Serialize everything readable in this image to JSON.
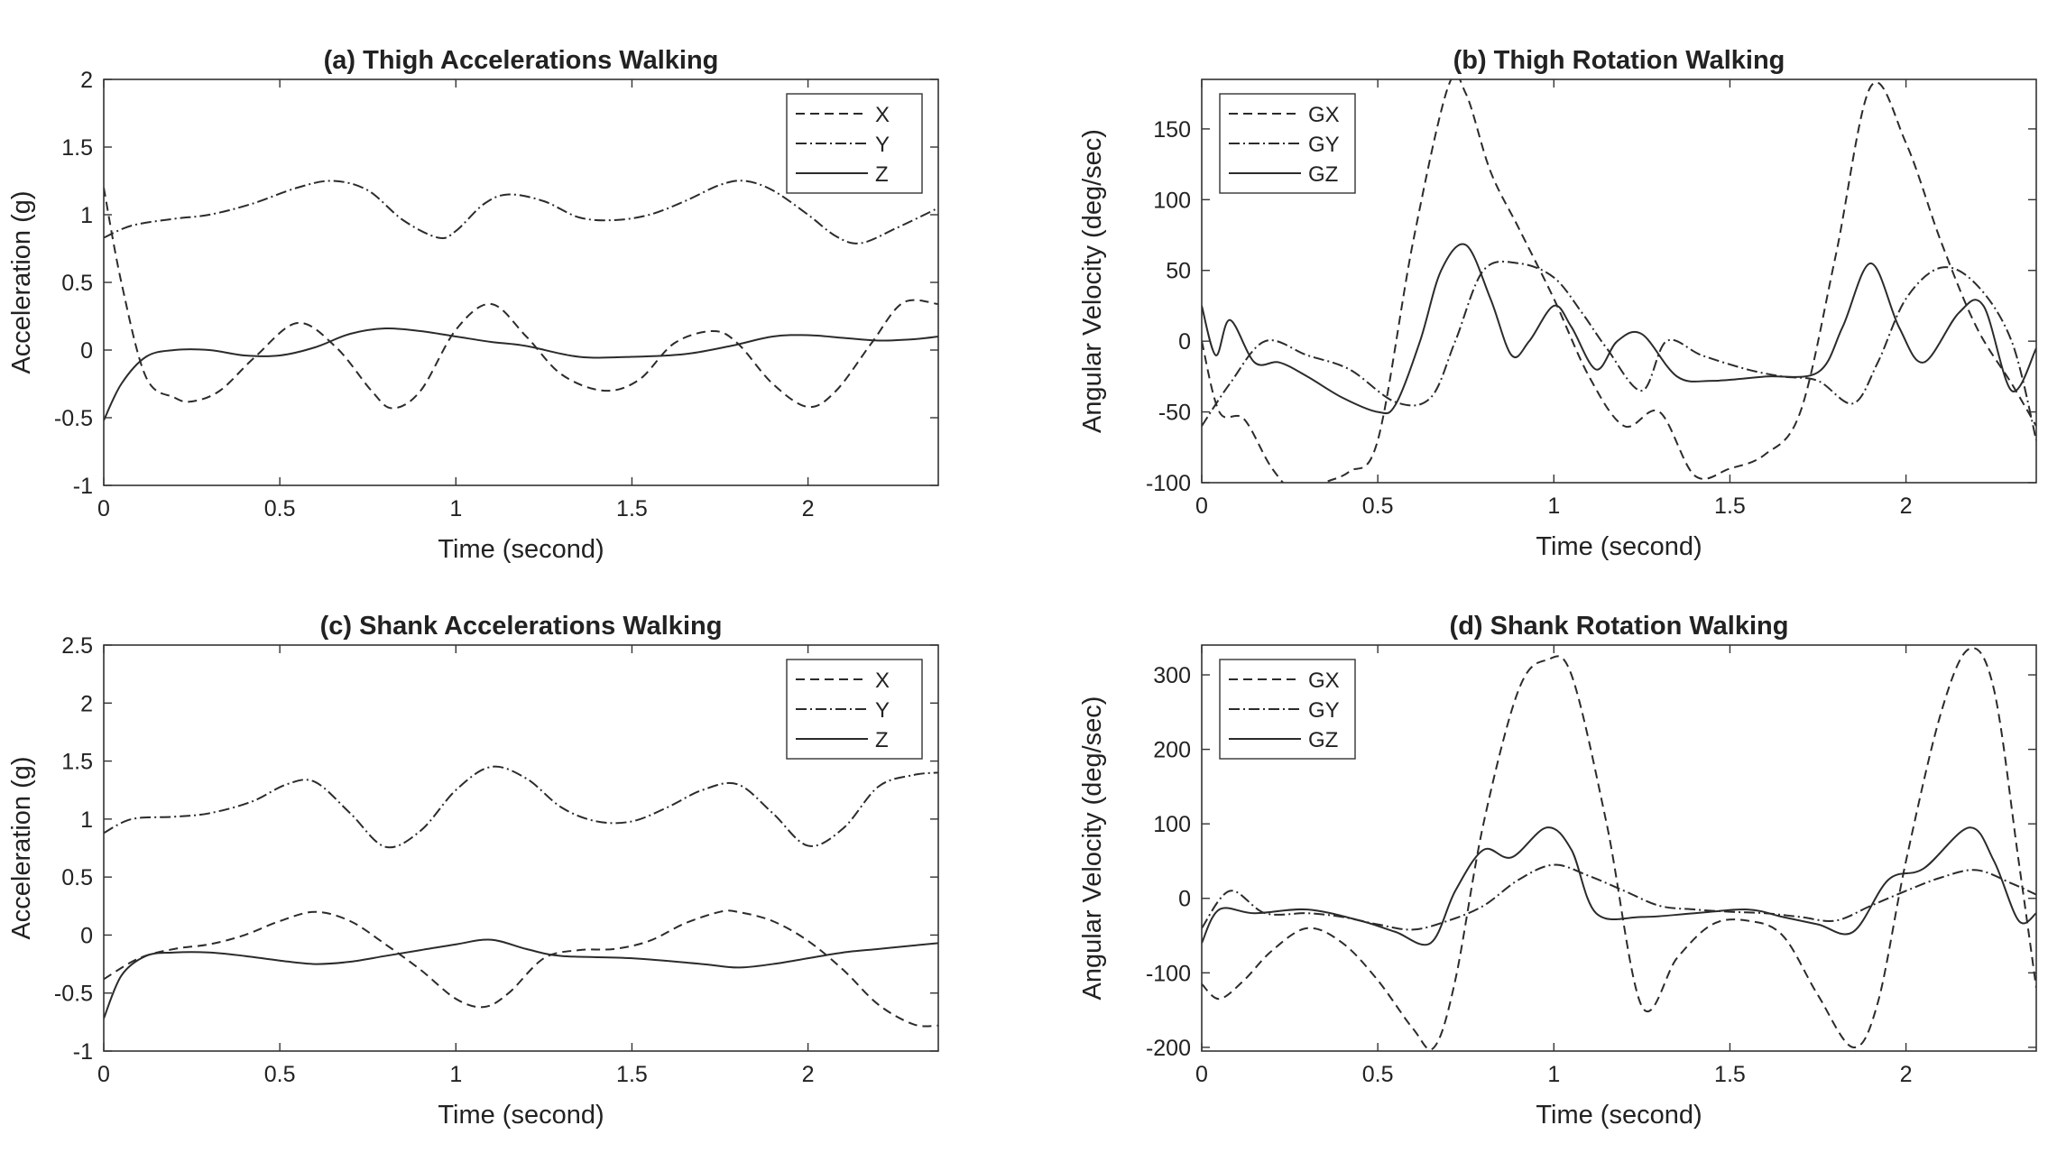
{
  "chart_data": [
    {
      "type": "line",
      "title": "(a) Thigh Accelerations Walking",
      "xlabel": "Time (second)",
      "ylabel": "Acceleration (g)",
      "xlim": [
        0,
        2.37
      ],
      "ylim": [
        -1,
        2
      ],
      "xticks": [
        0,
        0.5,
        1,
        1.5,
        2
      ],
      "xtick_labels": [
        "0",
        "0.5",
        "1",
        "1.5",
        "2"
      ],
      "yticks": [
        -1,
        -0.5,
        0,
        0.5,
        1,
        1.5,
        2
      ],
      "ytick_labels": [
        "-1",
        "-0.5",
        "0",
        "0.5",
        "1",
        "1.5",
        "2"
      ],
      "legend_position": "top-right",
      "series": [
        {
          "name": "X",
          "style": "dashed",
          "x": [
            0,
            0.05,
            0.12,
            0.2,
            0.25,
            0.33,
            0.43,
            0.55,
            0.66,
            0.76,
            0.82,
            0.9,
            1.0,
            1.1,
            1.2,
            1.3,
            1.42,
            1.52,
            1.62,
            1.73,
            1.8,
            1.9,
            2.0,
            2.08,
            2.18,
            2.27,
            2.37
          ],
          "y": [
            1.2,
            0.5,
            -0.2,
            -0.35,
            -0.38,
            -0.3,
            -0.05,
            0.2,
            0.02,
            -0.3,
            -0.43,
            -0.3,
            0.15,
            0.34,
            0.1,
            -0.18,
            -0.3,
            -0.22,
            0.05,
            0.14,
            0.05,
            -0.25,
            -0.42,
            -0.3,
            0.05,
            0.35,
            0.34
          ]
        },
        {
          "name": "Y",
          "style": "dashdot",
          "x": [
            0,
            0.08,
            0.2,
            0.3,
            0.42,
            0.55,
            0.65,
            0.75,
            0.85,
            0.95,
            1.0,
            1.08,
            1.15,
            1.25,
            1.35,
            1.45,
            1.55,
            1.65,
            1.75,
            1.82,
            1.9,
            2.0,
            2.08,
            2.15,
            2.25,
            2.37
          ],
          "y": [
            0.83,
            0.92,
            0.97,
            1.0,
            1.08,
            1.2,
            1.25,
            1.18,
            0.96,
            0.83,
            0.88,
            1.08,
            1.15,
            1.1,
            0.98,
            0.96,
            1.0,
            1.1,
            1.22,
            1.25,
            1.18,
            1.0,
            0.84,
            0.79,
            0.9,
            1.05
          ]
        },
        {
          "name": "Z",
          "style": "solid",
          "x": [
            0,
            0.05,
            0.12,
            0.2,
            0.3,
            0.4,
            0.5,
            0.6,
            0.7,
            0.8,
            0.9,
            1.0,
            1.1,
            1.2,
            1.35,
            1.5,
            1.65,
            1.78,
            1.9,
            2.0,
            2.1,
            2.2,
            2.3,
            2.37
          ],
          "y": [
            -0.52,
            -0.25,
            -0.05,
            0.0,
            0.0,
            -0.04,
            -0.04,
            0.02,
            0.12,
            0.16,
            0.14,
            0.1,
            0.06,
            0.03,
            -0.05,
            -0.05,
            -0.03,
            0.03,
            0.1,
            0.11,
            0.09,
            0.07,
            0.08,
            0.1
          ]
        }
      ]
    },
    {
      "type": "line",
      "title": "(b) Thigh Rotation Walking",
      "xlabel": "Time (second)",
      "ylabel": "Angular Velocity (deg/sec)",
      "xlim": [
        0,
        2.37
      ],
      "ylim": [
        -100,
        185
      ],
      "xticks": [
        0,
        0.5,
        1,
        1.5,
        2
      ],
      "xtick_labels": [
        "0",
        "0.5",
        "1",
        "1.5",
        "2"
      ],
      "yticks": [
        -100,
        -50,
        0,
        50,
        100,
        150
      ],
      "ytick_labels": [
        "-100",
        "-50",
        "0",
        "50",
        "100",
        "150"
      ],
      "legend_position": "top-left",
      "series": [
        {
          "name": "GX",
          "style": "dashed",
          "x": [
            0,
            0.05,
            0.12,
            0.2,
            0.28,
            0.35,
            0.42,
            0.5,
            0.6,
            0.7,
            0.75,
            0.82,
            0.9,
            1.0,
            1.1,
            1.2,
            1.3,
            1.4,
            1.5,
            1.6,
            1.7,
            1.8,
            1.9,
            2.0,
            2.1,
            2.2,
            2.3,
            2.37
          ],
          "y": [
            0,
            -50,
            -55,
            -90,
            -110,
            -100,
            -92,
            -70,
            70,
            180,
            175,
            120,
            80,
            30,
            -25,
            -60,
            -50,
            -95,
            -90,
            -80,
            -50,
            60,
            180,
            140,
            70,
            10,
            -30,
            -60
          ]
        },
        {
          "name": "GY",
          "style": "dashdot",
          "x": [
            0,
            0.08,
            0.18,
            0.3,
            0.42,
            0.55,
            0.65,
            0.72,
            0.8,
            0.9,
            1.0,
            1.08,
            1.15,
            1.25,
            1.32,
            1.42,
            1.55,
            1.65,
            1.75,
            1.85,
            1.92,
            2.0,
            2.1,
            2.2,
            2.3,
            2.37
          ],
          "y": [
            -60,
            -30,
            0,
            -10,
            -20,
            -43,
            -40,
            0,
            50,
            55,
            45,
            20,
            -5,
            -35,
            0,
            -10,
            -20,
            -25,
            -28,
            -44,
            -15,
            30,
            52,
            40,
            0,
            -70
          ]
        },
        {
          "name": "GZ",
          "style": "solid",
          "x": [
            0,
            0.04,
            0.08,
            0.15,
            0.22,
            0.3,
            0.4,
            0.5,
            0.55,
            0.62,
            0.68,
            0.75,
            0.82,
            0.88,
            0.93,
            1.0,
            1.05,
            1.12,
            1.18,
            1.25,
            1.35,
            1.45,
            1.6,
            1.75,
            1.82,
            1.9,
            1.98,
            2.05,
            2.15,
            2.22,
            2.3,
            2.37
          ],
          "y": [
            25,
            -10,
            15,
            -15,
            -15,
            -25,
            -40,
            -50,
            -45,
            0,
            50,
            68,
            30,
            -10,
            0,
            25,
            10,
            -20,
            0,
            5,
            -25,
            -28,
            -25,
            -22,
            10,
            55,
            10,
            -15,
            20,
            25,
            -35,
            -5
          ]
        }
      ]
    },
    {
      "type": "line",
      "title": "(c) Shank Accelerations Walking",
      "xlabel": "Time (second)",
      "ylabel": "Acceleration (g)",
      "xlim": [
        0,
        2.37
      ],
      "ylim": [
        -1,
        2.5
      ],
      "xticks": [
        0,
        0.5,
        1,
        1.5,
        2
      ],
      "xtick_labels": [
        "0",
        "0.5",
        "1",
        "1.5",
        "2"
      ],
      "yticks": [
        -1,
        -0.5,
        0,
        0.5,
        1,
        1.5,
        2,
        2.5
      ],
      "ytick_labels": [
        "-1",
        "-0.5",
        "0",
        "0.5",
        "1",
        "1.5",
        "2",
        "2.5"
      ],
      "legend_position": "top-right",
      "series": [
        {
          "name": "X",
          "style": "dashed",
          "x": [
            0,
            0.1,
            0.2,
            0.3,
            0.4,
            0.5,
            0.6,
            0.7,
            0.8,
            0.9,
            1.0,
            1.08,
            1.15,
            1.25,
            1.35,
            1.45,
            1.55,
            1.65,
            1.75,
            1.8,
            1.9,
            2.0,
            2.1,
            2.2,
            2.3,
            2.37
          ],
          "y": [
            -0.38,
            -0.2,
            -0.12,
            -0.08,
            0.0,
            0.12,
            0.2,
            0.12,
            -0.08,
            -0.3,
            -0.55,
            -0.62,
            -0.5,
            -0.2,
            -0.13,
            -0.12,
            -0.05,
            0.1,
            0.2,
            0.2,
            0.12,
            -0.05,
            -0.3,
            -0.6,
            -0.77,
            -0.78
          ]
        },
        {
          "name": "Y",
          "style": "dashdot",
          "x": [
            0,
            0.08,
            0.2,
            0.3,
            0.42,
            0.52,
            0.6,
            0.7,
            0.8,
            0.9,
            1.0,
            1.1,
            1.2,
            1.3,
            1.4,
            1.5,
            1.6,
            1.7,
            1.8,
            1.9,
            2.0,
            2.1,
            2.2,
            2.3,
            2.37
          ],
          "y": [
            0.88,
            1.0,
            1.02,
            1.05,
            1.15,
            1.3,
            1.32,
            1.05,
            0.76,
            0.9,
            1.25,
            1.45,
            1.35,
            1.1,
            0.98,
            0.98,
            1.1,
            1.25,
            1.3,
            1.05,
            0.77,
            0.92,
            1.28,
            1.38,
            1.4
          ]
        },
        {
          "name": "Z",
          "style": "solid",
          "x": [
            0,
            0.05,
            0.12,
            0.2,
            0.3,
            0.4,
            0.5,
            0.6,
            0.7,
            0.8,
            0.9,
            1.0,
            1.1,
            1.2,
            1.3,
            1.5,
            1.7,
            1.8,
            1.9,
            2.0,
            2.1,
            2.2,
            2.3,
            2.37
          ],
          "y": [
            -0.72,
            -0.35,
            -0.18,
            -0.15,
            -0.15,
            -0.18,
            -0.22,
            -0.25,
            -0.23,
            -0.18,
            -0.13,
            -0.08,
            -0.04,
            -0.12,
            -0.18,
            -0.2,
            -0.25,
            -0.28,
            -0.25,
            -0.2,
            -0.15,
            -0.12,
            -0.09,
            -0.07
          ]
        }
      ]
    },
    {
      "type": "line",
      "title": "(d) Shank Rotation Walking",
      "xlabel": "Time (second)",
      "ylabel": "Angular Velocity (deg/sec)",
      "xlim": [
        0,
        2.37
      ],
      "ylim": [
        -205,
        340
      ],
      "xticks": [
        0,
        0.5,
        1,
        1.5,
        2
      ],
      "xtick_labels": [
        "0",
        "0.5",
        "1",
        "1.5",
        "2"
      ],
      "yticks": [
        -200,
        -100,
        0,
        100,
        200,
        300
      ],
      "ytick_labels": [
        "-200",
        "-100",
        "0",
        "100",
        "200",
        "300"
      ],
      "legend_position": "top-left",
      "series": [
        {
          "name": "GX",
          "style": "dashed",
          "x": [
            0,
            0.05,
            0.12,
            0.2,
            0.3,
            0.4,
            0.5,
            0.6,
            0.66,
            0.72,
            0.8,
            0.9,
            0.98,
            1.05,
            1.15,
            1.25,
            1.35,
            1.45,
            1.55,
            1.65,
            1.75,
            1.85,
            1.92,
            2.0,
            2.1,
            2.18,
            2.25,
            2.32,
            2.37
          ],
          "y": [
            -115,
            -135,
            -110,
            -70,
            -40,
            -60,
            -110,
            -175,
            -200,
            -110,
            100,
            280,
            320,
            300,
            100,
            -145,
            -80,
            -35,
            -30,
            -50,
            -130,
            -200,
            -140,
            50,
            250,
            335,
            280,
            50,
            -120
          ]
        },
        {
          "name": "GY",
          "style": "dashdot",
          "x": [
            0,
            0.08,
            0.18,
            0.3,
            0.4,
            0.5,
            0.6,
            0.7,
            0.8,
            0.9,
            1.0,
            1.1,
            1.2,
            1.3,
            1.4,
            1.5,
            1.6,
            1.7,
            1.8,
            1.9,
            2.0,
            2.1,
            2.2,
            2.3,
            2.37
          ],
          "y": [
            -40,
            10,
            -20,
            -20,
            -25,
            -35,
            -42,
            -30,
            -10,
            25,
            45,
            30,
            10,
            -10,
            -15,
            -18,
            -20,
            -25,
            -30,
            -10,
            10,
            28,
            38,
            20,
            5
          ]
        },
        {
          "name": "GZ",
          "style": "solid",
          "x": [
            0,
            0.05,
            0.15,
            0.3,
            0.45,
            0.55,
            0.65,
            0.72,
            0.8,
            0.88,
            0.98,
            1.05,
            1.12,
            1.25,
            1.4,
            1.55,
            1.65,
            1.75,
            1.85,
            1.95,
            2.05,
            2.18,
            2.25,
            2.32,
            2.37
          ],
          "y": [
            -60,
            -15,
            -20,
            -15,
            -30,
            -45,
            -60,
            10,
            65,
            55,
            95,
            65,
            -20,
            -25,
            -20,
            -15,
            -25,
            -35,
            -45,
            25,
            40,
            95,
            50,
            -30,
            -20
          ]
        }
      ]
    }
  ]
}
